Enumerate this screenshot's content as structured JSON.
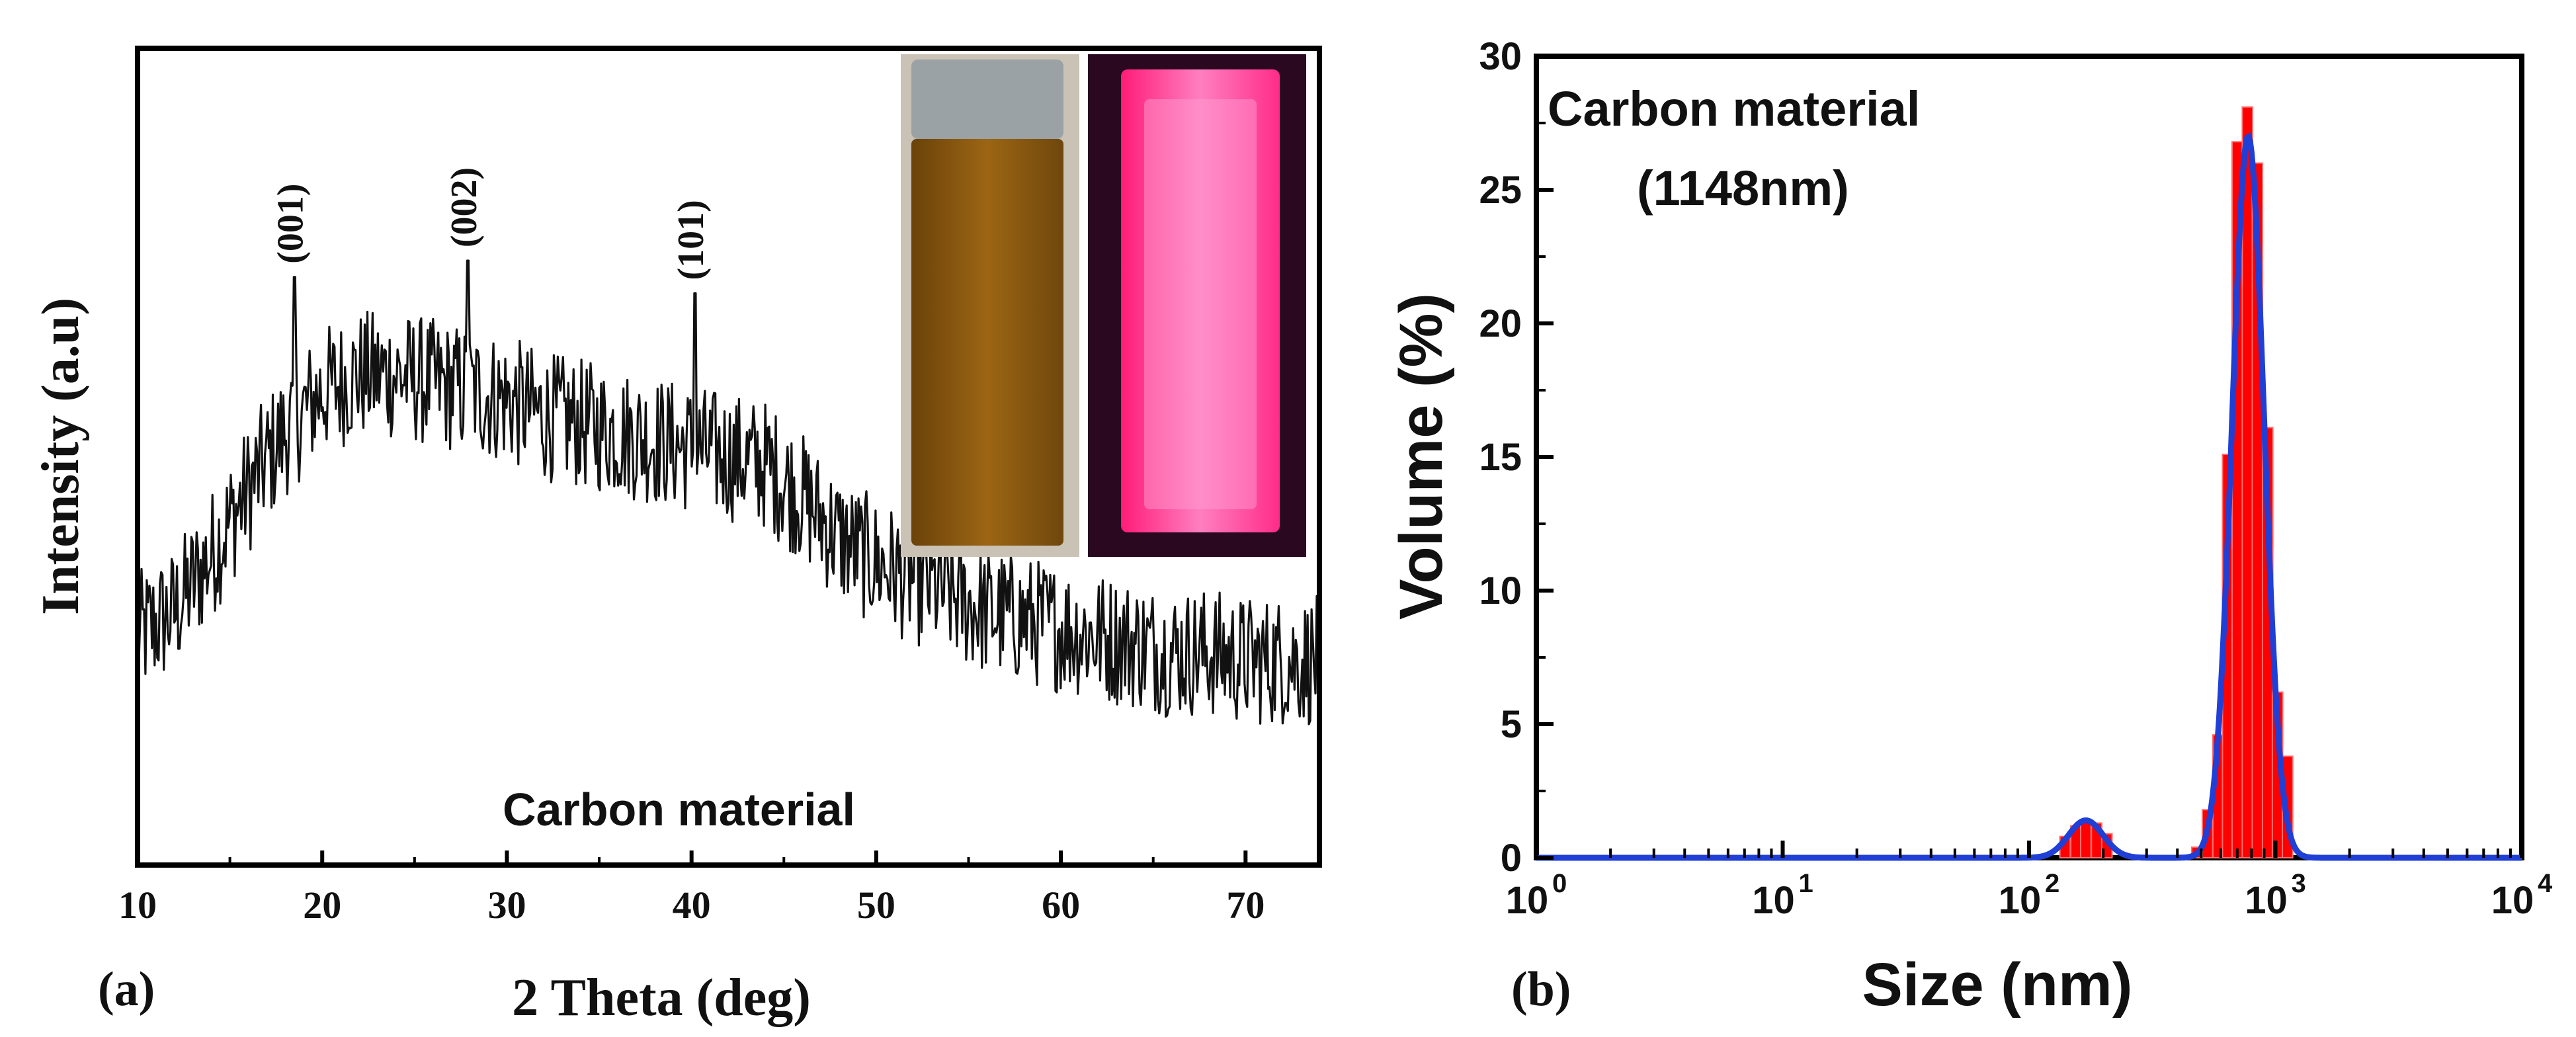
{
  "chart_data": [
    {
      "panel": "(a)",
      "type": "line",
      "title": "",
      "annotation": "Carbon material",
      "xlabel": "2 Theta (deg)",
      "ylabel": "Intensity (a.u)",
      "xlim": [
        10,
        74
      ],
      "ylim": [
        0,
        100
      ],
      "xticks": [
        10,
        20,
        30,
        40,
        50,
        60,
        70
      ],
      "xtick_labels": [
        "10",
        "20",
        "30",
        "40",
        "50",
        "60",
        "70"
      ],
      "peaks": [
        {
          "label": "(001)",
          "x": 18.5,
          "y": 72
        },
        {
          "label": "(002)",
          "x": 27.9,
          "y": 74
        },
        {
          "label": "(101)",
          "x": 40.2,
          "y": 70
        }
      ],
      "envelope": {
        "x": [
          10,
          12,
          14,
          16,
          18,
          20,
          22,
          24,
          26,
          28,
          30,
          32,
          34,
          36,
          38,
          40,
          42,
          44,
          46,
          48,
          50,
          52,
          54,
          56,
          58,
          60,
          62,
          64,
          66,
          68,
          70,
          72,
          74
        ],
        "y": [
          28,
          31,
          38,
          46,
          53,
          58,
          60,
          60,
          59,
          58,
          57,
          55,
          54,
          53,
          52,
          51,
          50,
          49,
          45,
          40,
          37,
          35,
          33,
          31,
          30,
          29,
          28,
          27,
          26,
          26,
          25,
          25,
          25
        ]
      },
      "noise_amplitude": 8,
      "inset_photos": [
        {
          "name": "vial-daylight",
          "description_color": "#8a5a10"
        },
        {
          "name": "vial-uv",
          "description_color": "#ff2d8a"
        }
      ]
    },
    {
      "panel": "(b)",
      "type": "bar",
      "annotation": "Carbon material",
      "annotation_sub": "(1148nm)",
      "xlabel": "Size (nm)",
      "ylabel": "Volume (%)",
      "xscale": "log",
      "xlim": [
        1,
        10000
      ],
      "ylim": [
        0,
        30
      ],
      "yticks": [
        0,
        5,
        10,
        15,
        20,
        25,
        30
      ],
      "xtick_base": "10",
      "xtick_exponents": [
        "0",
        "1",
        "2",
        "3",
        "4"
      ],
      "bar_color": "#ff0000",
      "fit_color": "#1f3fd6",
      "bars": [
        {
          "x": 140,
          "y": 0.8
        },
        {
          "x": 155,
          "y": 1.2
        },
        {
          "x": 170,
          "y": 1.4
        },
        {
          "x": 188,
          "y": 1.3
        },
        {
          "x": 207,
          "y": 0.9
        },
        {
          "x": 480,
          "y": 0.4
        },
        {
          "x": 530,
          "y": 1.8
        },
        {
          "x": 585,
          "y": 4.6
        },
        {
          "x": 640,
          "y": 15.1
        },
        {
          "x": 700,
          "y": 26.8
        },
        {
          "x": 770,
          "y": 28.1
        },
        {
          "x": 845,
          "y": 26.0
        },
        {
          "x": 930,
          "y": 16.1
        },
        {
          "x": 1020,
          "y": 6.2
        },
        {
          "x": 1120,
          "y": 3.8
        }
      ],
      "fit": {
        "peak1": {
          "center": 170,
          "height": 1.4,
          "log_sigma": 0.07
        },
        "peak2": {
          "center": 775,
          "height": 27.0,
          "log_sigma": 0.065
        }
      }
    }
  ]
}
